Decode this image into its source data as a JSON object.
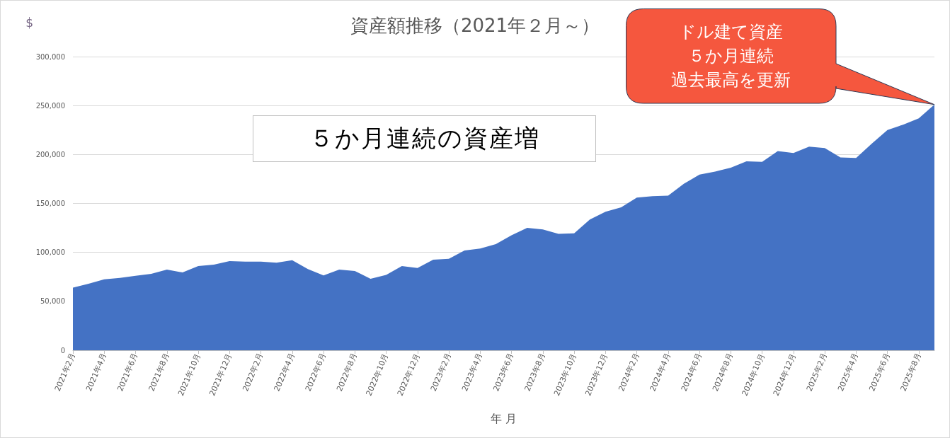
{
  "chart_data": {
    "type": "area",
    "title": "資産額推移（2021年２月～）",
    "xlabel": "年 月",
    "ylabel": "$",
    "categories": [
      "2021年2月",
      null,
      "2021年4月",
      null,
      "2021年6月",
      null,
      "2021年8月",
      null,
      "2021年10月",
      null,
      "2021年12月",
      null,
      "2022年2月",
      null,
      "2022年4月",
      null,
      "2022年6月",
      null,
      "2022年8月",
      null,
      "2022年10月",
      null,
      "2022年12月",
      null,
      "2023年2月",
      null,
      "2023年4月",
      null,
      "2023年6月",
      null,
      "2023年8月",
      null,
      "2023年10月",
      null,
      "2023年12月",
      null,
      "2024年2月",
      null,
      "2024年4月",
      null,
      "2024年6月",
      null,
      "2024年8月",
      null,
      "2024年10月",
      null,
      "2024年12月",
      null,
      "2025年2月",
      null,
      "2025年4月",
      null,
      "2025年6月",
      null,
      "2025年8月",
      null
    ],
    "values": [
      64000,
      68000,
      72500,
      74000,
      76000,
      78000,
      82500,
      79500,
      86000,
      87500,
      91000,
      90500,
      90500,
      89500,
      92000,
      83000,
      76500,
      82500,
      81000,
      73000,
      77000,
      86000,
      84000,
      92500,
      93500,
      102000,
      104000,
      108500,
      117500,
      125000,
      123500,
      119000,
      119500,
      133500,
      141500,
      146000,
      156000,
      157500,
      158000,
      170000,
      179500,
      182500,
      186500,
      193000,
      192500,
      203500,
      201500,
      208000,
      206500,
      197000,
      196500,
      211000,
      225000,
      230500,
      237000,
      251000
    ],
    "color": "#4472c4",
    "ylim": [
      0,
      300000
    ],
    "yticks": [
      0,
      {
        "value": 50000,
        "label": "50,000"
      },
      {
        "value": 100000,
        "label": "100,000"
      },
      {
        "value": 150000,
        "label": "150,000"
      },
      {
        "value": 200000,
        "label": "200,000"
      },
      {
        "value": 250000,
        "label": "250,000"
      },
      {
        "value": 300000,
        "label": "300,000"
      }
    ],
    "grid": "y",
    "annotations": [
      "５か月連続の資産増",
      "ドル建て資産５か月連続過去最高を更新"
    ]
  }
}
